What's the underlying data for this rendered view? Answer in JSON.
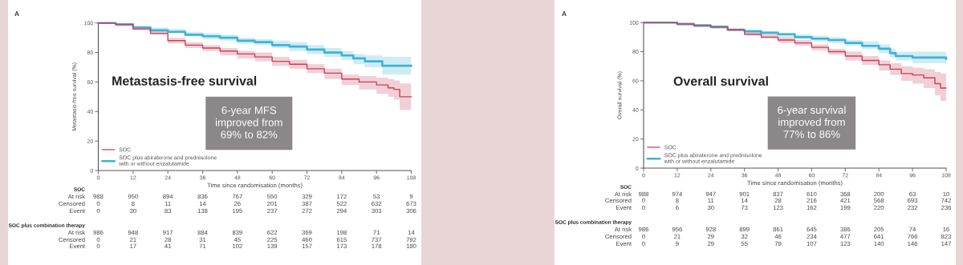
{
  "chart_data": [
    {
      "type": "step",
      "xlabel": "Time since randomisation (months)",
      "ylabel": "Metastasis-free survival (%)",
      "xlim": [
        0,
        108
      ],
      "ylim": [
        0,
        100
      ],
      "xticks": [
        0,
        12,
        24,
        36,
        48,
        60,
        72,
        84,
        96,
        108
      ],
      "yticks": [
        0,
        20,
        40,
        60,
        80,
        100
      ],
      "grid": false,
      "legend": "bottom left",
      "series": [
        {
          "name": "SOC",
          "color": "#c8415a",
          "x": [
            0,
            6,
            12,
            18,
            24,
            30,
            36,
            42,
            48,
            54,
            60,
            66,
            72,
            78,
            84,
            90,
            96,
            100,
            102,
            104,
            108
          ],
          "values": [
            100,
            99,
            96,
            93,
            88,
            85,
            83,
            81,
            79,
            77,
            74,
            72,
            69,
            66,
            62,
            60,
            58,
            56,
            55,
            50,
            50
          ],
          "lower": [
            100,
            98,
            95,
            92,
            86,
            83,
            81,
            78,
            76,
            74,
            71,
            69,
            66,
            62,
            58,
            55,
            52,
            50,
            48,
            41,
            41
          ],
          "upper": [
            100,
            100,
            97,
            95,
            90,
            87,
            85,
            83,
            81,
            80,
            77,
            75,
            72,
            69,
            65,
            64,
            63,
            62,
            61,
            59,
            59
          ]
        },
        {
          "name": "SOC plus abiraterone and prednisolone\nwith or without enzalutamide",
          "color": "#3fb2d6",
          "x": [
            0,
            6,
            12,
            18,
            24,
            30,
            36,
            42,
            48,
            54,
            60,
            66,
            72,
            78,
            84,
            88,
            92,
            96,
            98,
            108
          ],
          "values": [
            100,
            99,
            97,
            95,
            94,
            92,
            91,
            90,
            88,
            87,
            85,
            84,
            82,
            80,
            78,
            76,
            74,
            74,
            71,
            71
          ],
          "lower": [
            100,
            98,
            96,
            94,
            93,
            91,
            89,
            88,
            86,
            85,
            83,
            81,
            79,
            77,
            75,
            72,
            70,
            70,
            65,
            65
          ],
          "upper": [
            100,
            100,
            98,
            97,
            96,
            94,
            93,
            92,
            90,
            89,
            88,
            87,
            85,
            83,
            81,
            79,
            78,
            78,
            77,
            77
          ]
        }
      ],
      "annotations": [
        "A",
        "Metastasis-free survival",
        "6-year MFS\nimproved from\n69% to 82%",
        "SOC",
        "At risk",
        "988",
        "950",
        "894",
        "836",
        "767",
        "550",
        "329",
        "172",
        "53",
        "9",
        "Censored",
        "0",
        "8",
        "11",
        "14",
        "26",
        "201",
        "387",
        "522",
        "632",
        "673",
        "Event",
        "0",
        "30",
        "83",
        "138",
        "195",
        "237",
        "272",
        "294",
        "303",
        "306",
        "SOC plus combination therapy",
        "At risk",
        "986",
        "948",
        "917",
        "884",
        "839",
        "622",
        "369",
        "198",
        "71",
        "14",
        "Censored",
        "0",
        "21",
        "28",
        "31",
        "45",
        "225",
        "460",
        "615",
        "737",
        "792",
        "Event",
        "0",
        "17",
        "41",
        "71",
        "102",
        "139",
        "157",
        "173",
        "178",
        "180"
      ]
    },
    {
      "type": "step",
      "xlabel": "Time since randomisation (months)",
      "ylabel": "Overall survival (%)",
      "xlim": [
        0,
        108
      ],
      "ylim": [
        0,
        100
      ],
      "xticks": [
        0,
        12,
        24,
        36,
        48,
        60,
        72,
        84,
        96,
        108
      ],
      "yticks": [
        0,
        20,
        40,
        60,
        80,
        100
      ],
      "grid": false,
      "legend": "bottom left",
      "series": [
        {
          "name": "SOC",
          "color": "#c8415a",
          "x": [
            0,
            6,
            12,
            18,
            24,
            30,
            36,
            42,
            48,
            54,
            60,
            66,
            72,
            78,
            84,
            88,
            92,
            96,
            100,
            104,
            106,
            108
          ],
          "values": [
            100,
            100,
            99,
            98,
            97,
            95,
            92,
            90,
            88,
            86,
            83,
            80,
            77,
            74,
            71,
            68,
            65,
            64,
            62,
            58,
            55,
            55
          ],
          "lower": [
            100,
            100,
            98,
            97,
            96,
            94,
            91,
            89,
            86,
            84,
            81,
            78,
            74,
            71,
            67,
            64,
            60,
            58,
            55,
            50,
            46,
            46
          ],
          "upper": [
            100,
            100,
            100,
            99,
            98,
            96,
            94,
            92,
            90,
            88,
            85,
            82,
            80,
            77,
            74,
            72,
            70,
            69,
            68,
            66,
            65,
            65
          ]
        },
        {
          "name": "SOC plus abiraterone and prednisolone\nwith or without enzalutamide",
          "color": "#3fb2d6",
          "x": [
            0,
            6,
            12,
            18,
            24,
            30,
            36,
            42,
            48,
            54,
            60,
            66,
            72,
            78,
            84,
            88,
            90,
            96,
            108
          ],
          "values": [
            100,
            100,
            99,
            98,
            97,
            95,
            94,
            93,
            92,
            90,
            89,
            88,
            86,
            84,
            82,
            79,
            77,
            76,
            75
          ],
          "lower": [
            100,
            100,
            98,
            97,
            96,
            94,
            93,
            92,
            90,
            89,
            87,
            86,
            84,
            82,
            79,
            76,
            74,
            72,
            70
          ],
          "upper": [
            100,
            100,
            100,
            99,
            98,
            96,
            95,
            94,
            93,
            92,
            91,
            90,
            88,
            87,
            85,
            82,
            80,
            80,
            80
          ]
        }
      ],
      "annotations": [
        "A",
        "Overall survival",
        "6-year survival\nimproved from\n77% to 86%",
        "SOC",
        "At risk",
        "988",
        "974",
        "947",
        "901",
        "837",
        "610",
        "368",
        "200",
        "63",
        "10",
        "Censored",
        "0",
        "8",
        "11",
        "14",
        "28",
        "216",
        "421",
        "568",
        "693",
        "742",
        "Event",
        "0",
        "6",
        "30",
        "73",
        "123",
        "162",
        "199",
        "220",
        "232",
        "236",
        "SOC plus combination therapy",
        "At risk",
        "986",
        "956",
        "928",
        "899",
        "861",
        "645",
        "386",
        "205",
        "74",
        "16",
        "Censored",
        "0",
        "21",
        "29",
        "32",
        "46",
        "234",
        "477",
        "641",
        "766",
        "823",
        "Event",
        "0",
        "9",
        "29",
        "55",
        "79",
        "107",
        "123",
        "140",
        "146",
        "147"
      ]
    }
  ]
}
